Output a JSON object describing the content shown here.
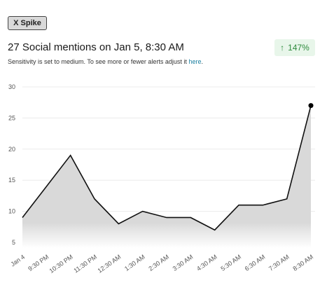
{
  "alert": {
    "badge": "X Spike",
    "headline": "27 Social mentions on Jan 5, 8:30 AM",
    "change": "147%",
    "change_direction": "up",
    "change_color": "#2e8b3d",
    "sensitivity_text": "Sensitivity is set to medium. To see more or fewer alerts adjust it ",
    "sensitivity_link": "here",
    "sensitivity_suffix": "."
  },
  "chart_data": {
    "type": "area",
    "title": "",
    "xlabel": "",
    "ylabel": "",
    "categories": [
      "Jan 4",
      "9:30 PM",
      "10:30 PM",
      "11:30 PM",
      "12:30 AM",
      "1:30 AM",
      "2:30 AM",
      "3:30 AM",
      "4:30 AM",
      "5:30 AM",
      "6:30 AM",
      "7:30 AM",
      "8:30 AM"
    ],
    "values": [
      9,
      14,
      19,
      12,
      8,
      10,
      9,
      9,
      7,
      11,
      11,
      12,
      27
    ],
    "yticks": [
      5,
      10,
      15,
      20,
      25,
      30
    ],
    "ylim": [
      5,
      30
    ],
    "grid": true,
    "line_color": "#111111",
    "fill_color": "#d9d9d9",
    "highlight_last_point": true
  }
}
